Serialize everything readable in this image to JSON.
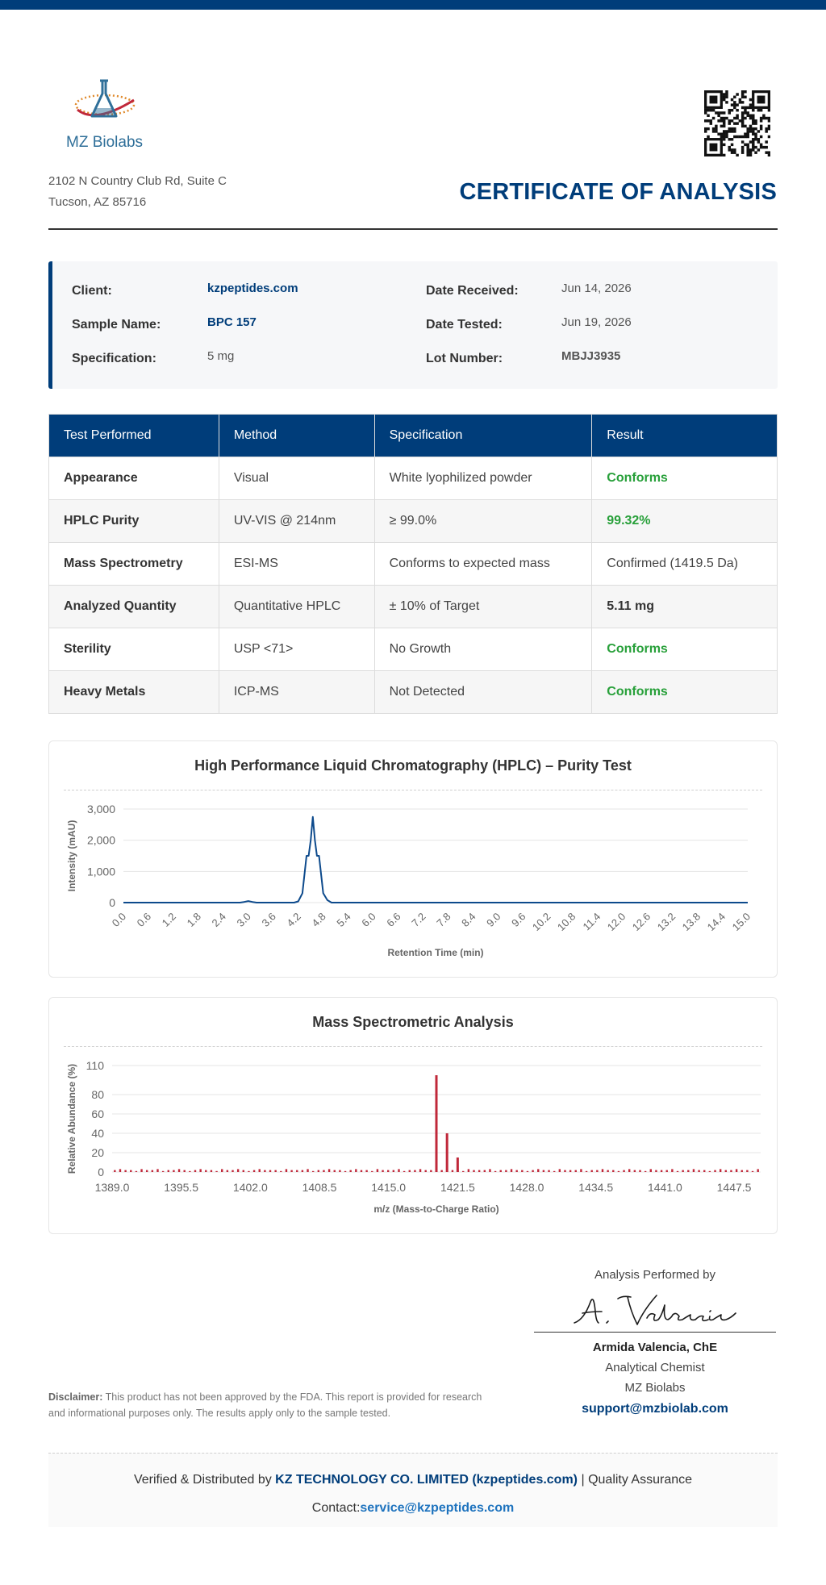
{
  "header": {
    "company_name": "MZ Biolabs",
    "address_line1": "2102 N Country Club Rd, Suite C",
    "address_line2": "Tucson, AZ 85716",
    "title": "CERTIFICATE OF ANALYSIS",
    "brand_color": "#003d7a"
  },
  "info": {
    "client_label": "Client:",
    "client_value": "kzpeptides.com",
    "sample_label": "Sample Name:",
    "sample_value": "BPC 157",
    "spec_label": "Specification:",
    "spec_value": "5 mg",
    "received_label": "Date Received:",
    "received_value": "Jun 14, 2026",
    "tested_label": "Date Tested:",
    "tested_value": "Jun 19, 2026",
    "lot_label": "Lot Number:",
    "lot_value": "MBJJ3935"
  },
  "table": {
    "headers": [
      "Test Performed",
      "Method",
      "Specification",
      "Result"
    ],
    "rows": [
      {
        "test": "Appearance",
        "method": "Visual",
        "spec": "White lyophilized powder",
        "result": "Conforms"
      },
      {
        "test": "HPLC Purity",
        "method": "UV-VIS @ 214nm",
        "spec": "≥ 99.0%",
        "result": "99.32%"
      },
      {
        "test": "Mass Spectrometry",
        "method": "ESI-MS",
        "spec": "Conforms to expected mass",
        "result": "Confirmed (1419.5 Da)"
      },
      {
        "test": "Analyzed Quantity",
        "method": "Quantitative HPLC",
        "spec": "± 10% of Target",
        "result": "5.11 mg"
      },
      {
        "test": "Sterility",
        "method": "USP <71>",
        "spec": "No Growth",
        "result": "Conforms"
      },
      {
        "test": "Heavy Metals",
        "method": "ICP-MS",
        "spec": "Not Detected",
        "result": "Conforms"
      }
    ],
    "pass_color": "#28a03a"
  },
  "chart_data": [
    {
      "type": "line",
      "title": "High Performance Liquid Chromatography (HPLC) – Purity Test",
      "xlabel": "Retention Time (min)",
      "ylabel": "Intensity (mAU)",
      "x_ticks": [
        "0.0",
        "0.6",
        "1.2",
        "1.8",
        "2.4",
        "3.0",
        "3.6",
        "4.2",
        "4.8",
        "5.4",
        "6.0",
        "6.6",
        "7.2",
        "7.8",
        "8.4",
        "9.0",
        "9.6",
        "10.2",
        "10.8",
        "11.4",
        "12.0",
        "12.6",
        "13.2",
        "13.8",
        "14.4",
        "15.0"
      ],
      "y_ticks": [
        "0",
        "1,000",
        "2,000",
        "3,000"
      ],
      "xlim": [
        0,
        15
      ],
      "ylim": [
        0,
        3000
      ],
      "grid": true,
      "color": "#0d4a8c",
      "x": [
        0.0,
        2.8,
        2.9,
        3.0,
        3.1,
        3.2,
        4.1,
        4.2,
        4.3,
        4.4,
        4.45,
        4.5,
        4.55,
        4.6,
        4.65,
        4.7,
        4.8,
        4.9,
        5.0,
        15.0
      ],
      "y": [
        0,
        0,
        20,
        50,
        20,
        0,
        0,
        40,
        300,
        1500,
        1500,
        2000,
        2750,
        2000,
        1500,
        1500,
        300,
        80,
        0,
        0
      ]
    },
    {
      "type": "bar",
      "title": "Mass Spectrometric Analysis",
      "xlabel": "m/z (Mass-to-Charge Ratio)",
      "ylabel": "Relative Abundance (%)",
      "x_ticks": [
        "1389.0",
        "1395.5",
        "1402.0",
        "1408.5",
        "1415.0",
        "1421.5",
        "1428.0",
        "1434.5",
        "1441.0",
        "1447.5"
      ],
      "y_ticks": [
        "0",
        "20",
        "40",
        "60",
        "80",
        "110"
      ],
      "xlim": [
        1389.0,
        1450.0
      ],
      "ylim": [
        0,
        110
      ],
      "grid": true,
      "color": "#c0283a",
      "peaks": [
        {
          "mz": 1419.5,
          "abundance": 100
        },
        {
          "mz": 1420.5,
          "abundance": 40
        },
        {
          "mz": 1421.5,
          "abundance": 15
        }
      ],
      "baseline_noise": [
        2,
        3,
        2,
        2,
        1,
        3,
        2,
        2,
        3,
        1,
        2,
        2,
        3,
        2,
        1,
        2,
        3,
        2,
        2,
        1,
        3,
        2,
        2,
        3,
        2,
        1,
        2,
        3,
        2,
        2,
        2,
        1,
        3,
        2,
        2,
        2,
        3,
        1,
        2,
        2,
        3,
        2,
        2,
        1,
        2,
        3,
        2,
        2,
        1,
        3,
        2,
        2,
        2,
        3,
        1,
        2,
        2,
        3,
        2,
        2,
        1,
        2,
        3,
        2,
        2,
        1,
        3,
        2,
        2,
        2,
        3,
        1,
        2,
        2,
        3,
        2,
        2,
        1,
        2,
        3,
        2,
        2,
        1,
        3,
        2,
        2,
        2,
        3,
        1,
        2,
        2,
        3,
        2,
        2,
        1,
        2,
        3,
        2,
        2,
        1,
        3,
        2,
        2,
        2,
        3,
        1,
        2,
        2,
        3,
        2,
        2,
        1,
        2,
        3,
        2,
        2,
        3,
        2,
        2,
        1,
        3
      ]
    }
  ],
  "signature": {
    "caption": "Analysis Performed by",
    "signature_script": "A. Valencia",
    "name": "Armida Valencia, ChE",
    "role": "Analytical Chemist",
    "company": "MZ Biolabs",
    "email": "support@mzbiolab.com"
  },
  "disclaimer": {
    "label": "Disclaimer:",
    "text": "This product has not been approved by the FDA. This report is provided for research and informational purposes only. The results apply only to the sample tested."
  },
  "footer": {
    "prefix": "Verified & Distributed by",
    "company": "KZ TECHNOLOGY CO. LIMITED (kzpeptides.com)",
    "suffix": "| Quality Assurance",
    "contact_label": "Contact:",
    "contact_email": "service@kzpeptides.com"
  }
}
